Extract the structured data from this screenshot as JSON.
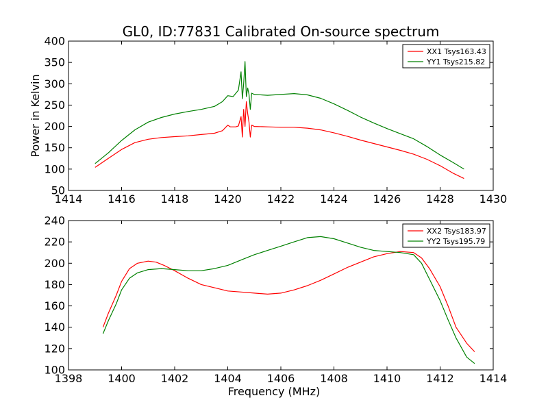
{
  "figure": {
    "title": "GL0, ID:77831 Calibrated On-source spectrum"
  },
  "chart_data": [
    {
      "type": "line",
      "title": "GL0, ID:77831 Calibrated On-source spectrum",
      "xlabel": "",
      "ylabel": "Power in Kelvin",
      "xlim": [
        1414,
        1430
      ],
      "ylim": [
        50,
        400
      ],
      "xticks": [
        "1414",
        "1416",
        "1418",
        "1420",
        "1422",
        "1424",
        "1426",
        "1428",
        "1430"
      ],
      "yticks": [
        "50",
        "100",
        "150",
        "200",
        "250",
        "300",
        "350",
        "400"
      ],
      "grid": false,
      "legend_position": "top-right",
      "series": [
        {
          "name": "XX1 Tsys163.43",
          "color": "#ff0000",
          "x": [
            1415.0,
            1415.5,
            1416.0,
            1416.5,
            1417.0,
            1417.5,
            1418.0,
            1418.5,
            1419.0,
            1419.5,
            1419.8,
            1420.0,
            1420.1,
            1420.3,
            1420.4,
            1420.5,
            1420.55,
            1420.6,
            1420.65,
            1420.7,
            1420.75,
            1420.8,
            1420.85,
            1420.9,
            1421.0,
            1421.5,
            1422.0,
            1422.5,
            1423.0,
            1423.5,
            1424.0,
            1424.5,
            1425.0,
            1425.5,
            1426.0,
            1426.5,
            1427.0,
            1427.5,
            1428.0,
            1428.5,
            1428.9
          ],
          "values": [
            104,
            125,
            146,
            162,
            170,
            174,
            176,
            178,
            181,
            184,
            190,
            203,
            199,
            199,
            201,
            223,
            175,
            240,
            200,
            258,
            230,
            210,
            175,
            203,
            200,
            199,
            198,
            198,
            196,
            192,
            185,
            177,
            168,
            160,
            152,
            144,
            135,
            123,
            108,
            90,
            78
          ]
        },
        {
          "name": "YY1 Tsys215.82",
          "color": "#008000",
          "x": [
            1415.0,
            1415.5,
            1416.0,
            1416.5,
            1417.0,
            1417.5,
            1418.0,
            1418.5,
            1419.0,
            1419.5,
            1419.8,
            1420.0,
            1420.2,
            1420.4,
            1420.5,
            1420.55,
            1420.6,
            1420.65,
            1420.7,
            1420.75,
            1420.8,
            1420.85,
            1420.9,
            1421.0,
            1421.5,
            1422.0,
            1422.5,
            1423.0,
            1423.5,
            1424.0,
            1424.5,
            1425.0,
            1425.5,
            1426.0,
            1426.5,
            1427.0,
            1427.5,
            1428.0,
            1428.5,
            1428.9
          ],
          "values": [
            113,
            138,
            167,
            192,
            210,
            221,
            229,
            235,
            240,
            247,
            258,
            272,
            270,
            285,
            328,
            265,
            300,
            352,
            270,
            290,
            275,
            240,
            278,
            275,
            273,
            275,
            277,
            274,
            266,
            253,
            238,
            222,
            208,
            195,
            183,
            171,
            153,
            133,
            115,
            100
          ]
        }
      ]
    },
    {
      "type": "line",
      "title": "",
      "xlabel": "Frequency (MHz)",
      "ylabel": "",
      "xlim": [
        1398,
        1414
      ],
      "ylim": [
        100,
        240
      ],
      "xticks": [
        "1398",
        "1400",
        "1402",
        "1404",
        "1406",
        "1408",
        "1410",
        "1412",
        "1414"
      ],
      "yticks": [
        "100",
        "120",
        "140",
        "160",
        "180",
        "200",
        "220",
        "240"
      ],
      "grid": false,
      "legend_position": "top-right",
      "series": [
        {
          "name": "XX2 Tsys183.97",
          "color": "#ff0000",
          "x": [
            1399.3,
            1399.5,
            1399.8,
            1400.0,
            1400.3,
            1400.6,
            1401.0,
            1401.3,
            1401.6,
            1402.0,
            1402.5,
            1403.0,
            1403.5,
            1404.0,
            1404.5,
            1405.0,
            1405.5,
            1406.0,
            1406.5,
            1407.0,
            1407.5,
            1408.0,
            1408.5,
            1409.0,
            1409.5,
            1410.0,
            1410.5,
            1411.0,
            1411.3,
            1411.6,
            1412.0,
            1412.3,
            1412.6,
            1413.0,
            1413.3
          ],
          "values": [
            140,
            153,
            170,
            183,
            195,
            200,
            202,
            201,
            198,
            193,
            186,
            180,
            177,
            174,
            173,
            172,
            171,
            172,
            175,
            179,
            184,
            190,
            196,
            201,
            206,
            209,
            211,
            210,
            205,
            195,
            178,
            160,
            140,
            125,
            117
          ]
        },
        {
          "name": "YY2 Tsys195.79",
          "color": "#008000",
          "x": [
            1399.3,
            1399.5,
            1399.8,
            1400.0,
            1400.3,
            1400.6,
            1401.0,
            1401.5,
            1402.0,
            1402.5,
            1403.0,
            1403.5,
            1404.0,
            1404.5,
            1405.0,
            1405.5,
            1406.0,
            1406.5,
            1407.0,
            1407.5,
            1408.0,
            1408.5,
            1409.0,
            1409.5,
            1410.0,
            1410.5,
            1411.0,
            1411.3,
            1411.6,
            1412.0,
            1412.3,
            1412.6,
            1413.0,
            1413.3
          ],
          "values": [
            134,
            146,
            162,
            175,
            186,
            191,
            194,
            195,
            194,
            193,
            193,
            195,
            198,
            203,
            208,
            212,
            216,
            220,
            224,
            225,
            223,
            219,
            215,
            212,
            211,
            210,
            208,
            200,
            185,
            165,
            147,
            130,
            112,
            106
          ]
        }
      ]
    }
  ]
}
